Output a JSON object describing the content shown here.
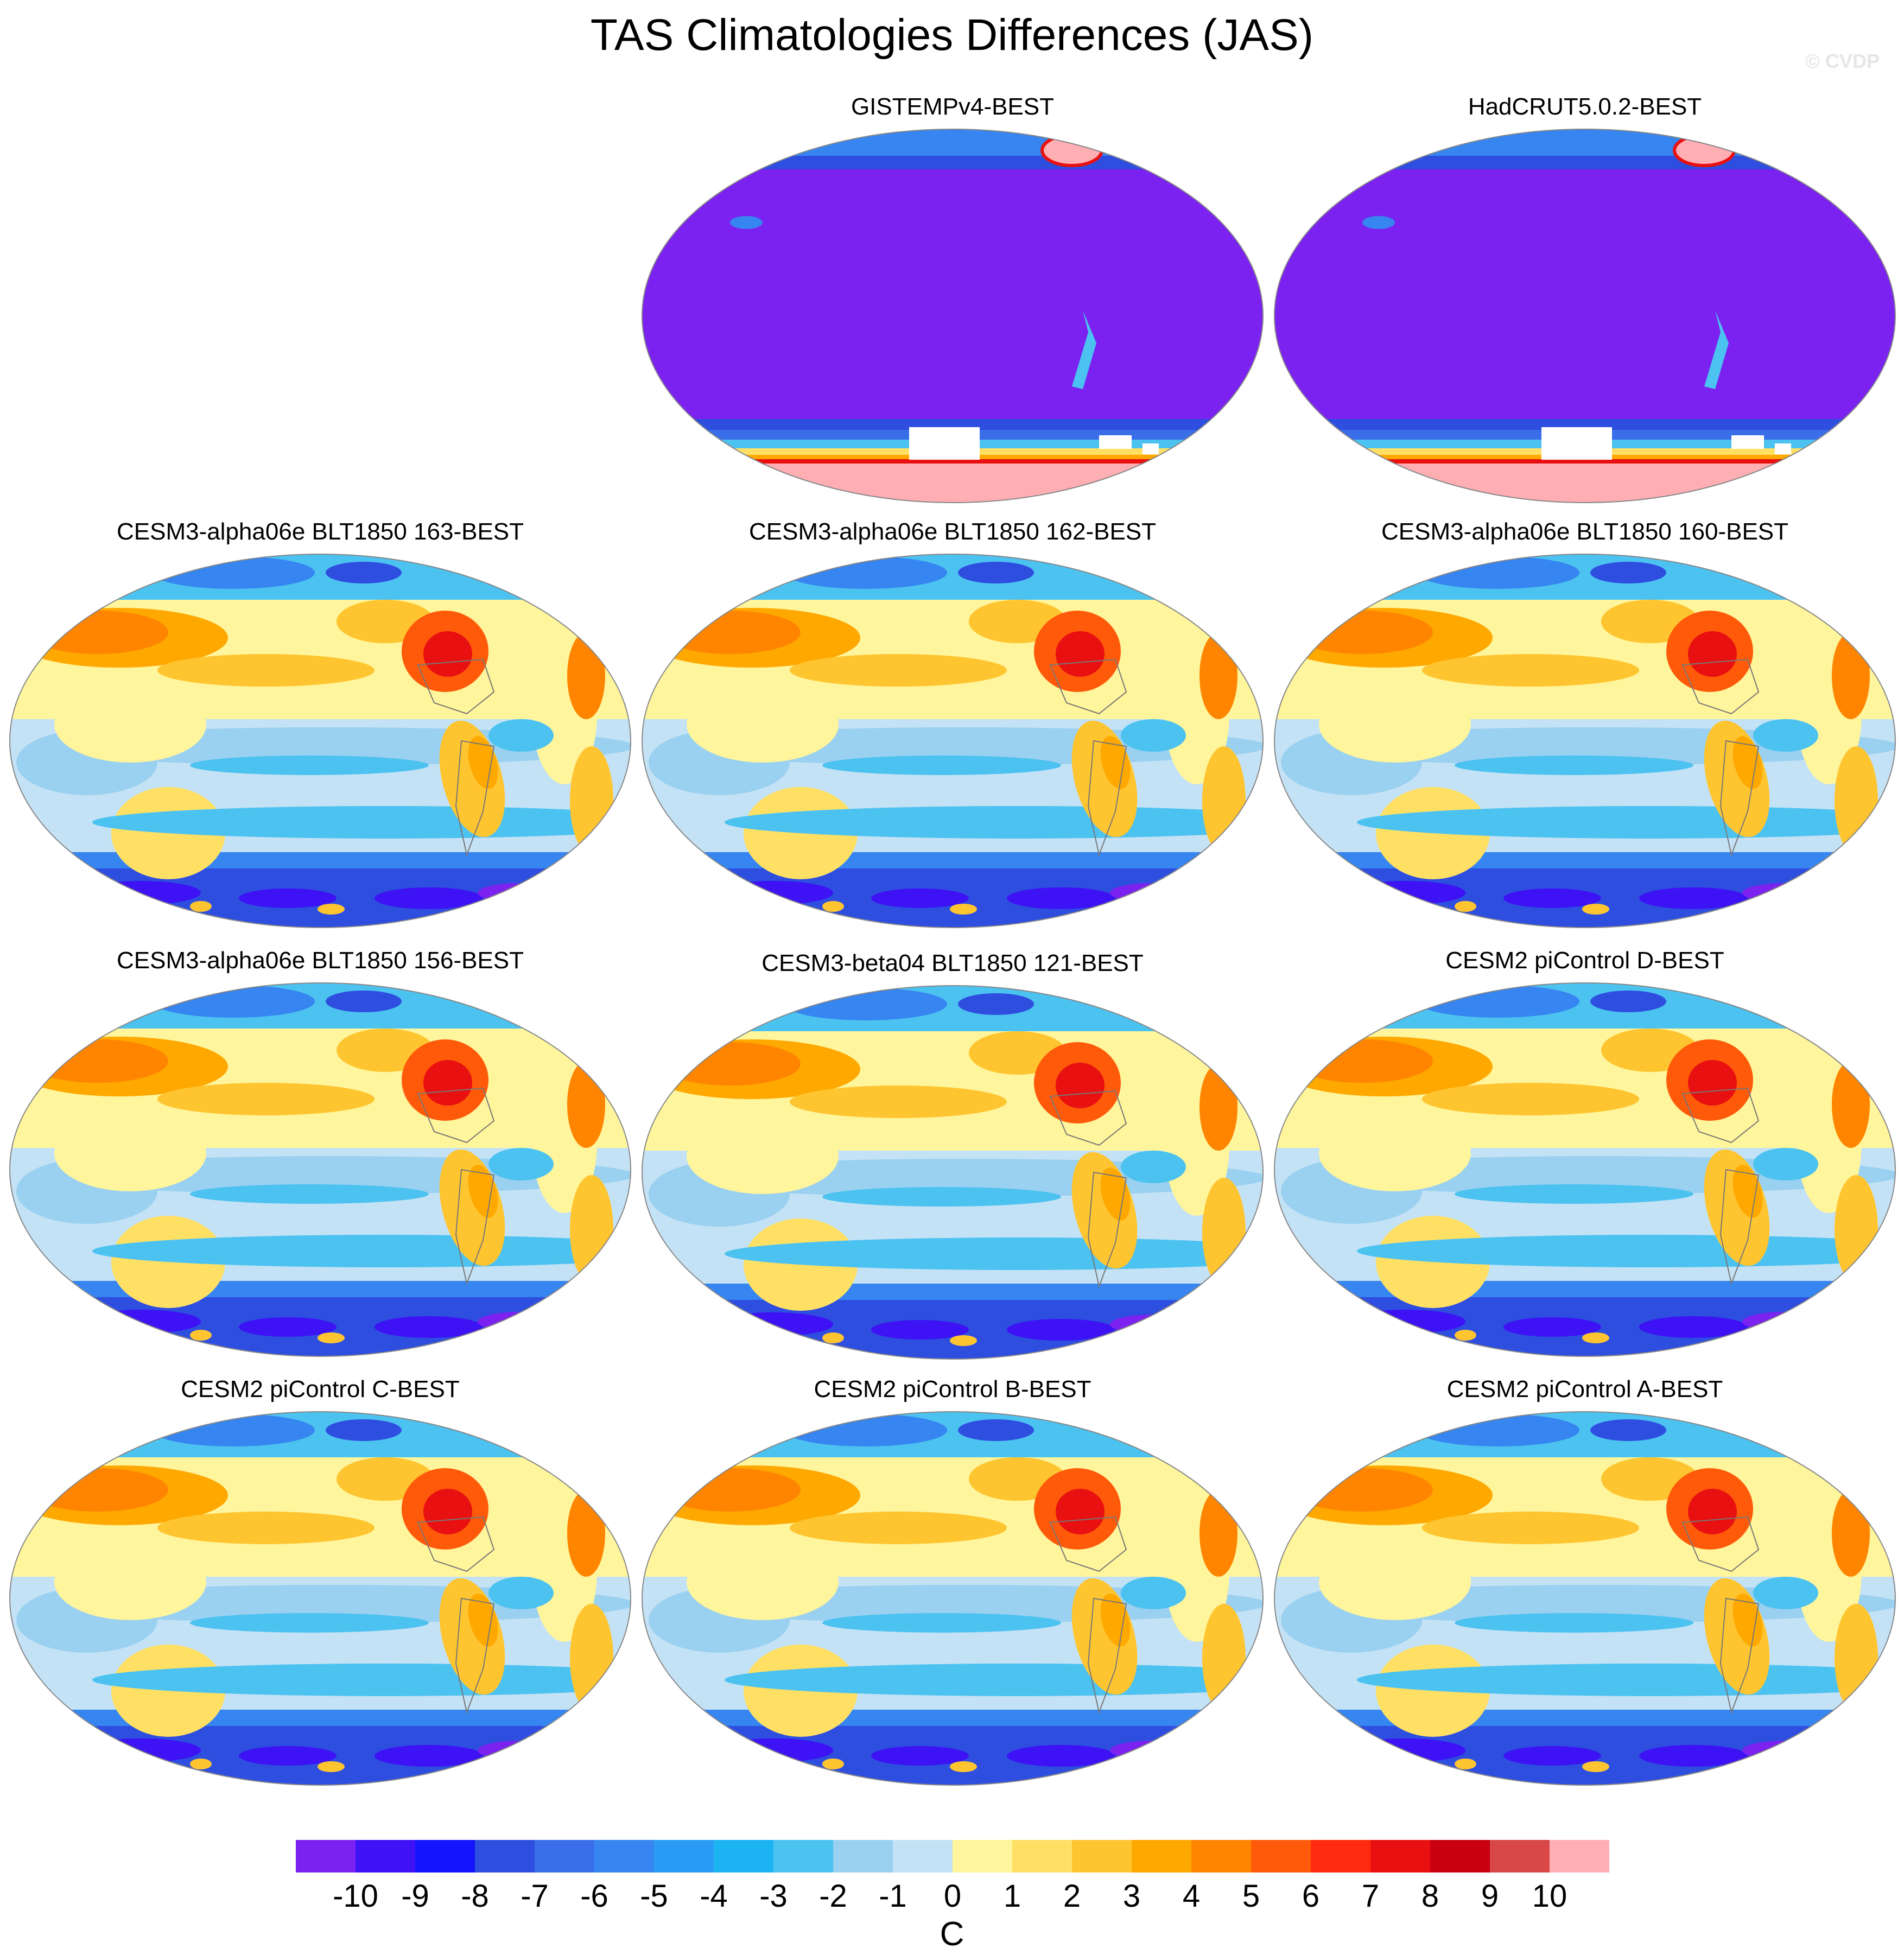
{
  "title": "TAS Climatologies Differences (JAS)",
  "watermark": "© CVDP",
  "panels": [
    {
      "title": "GISTEMPv4-BEST",
      "variant": "obs"
    },
    {
      "title": "HadCRUT5.0.2-BEST",
      "variant": "obs"
    },
    {
      "title": "CESM3-alpha06e BLT1850 163-BEST",
      "variant": "model"
    },
    {
      "title": "CESM3-alpha06e BLT1850 162-BEST",
      "variant": "model"
    },
    {
      "title": "CESM3-alpha06e BLT1850 160-BEST",
      "variant": "model"
    },
    {
      "title": "CESM3-alpha06e BLT1850 156-BEST",
      "variant": "model"
    },
    {
      "title": "CESM3-beta04 BLT1850 121-BEST",
      "variant": "model"
    },
    {
      "title": "CESM2 piControl D-BEST",
      "variant": "model"
    },
    {
      "title": "CESM2 piControl C-BEST",
      "variant": "model"
    },
    {
      "title": "CESM2 piControl B-BEST",
      "variant": "model"
    },
    {
      "title": "CESM2 piControl A-BEST",
      "variant": "model"
    }
  ],
  "colorbar": {
    "colors": [
      "#7b22f0",
      "#3d12f5",
      "#1414ff",
      "#2e4ee0",
      "#3a6de8",
      "#3685f0",
      "#2a9cf5",
      "#1bb3f2",
      "#4cc2f0",
      "#9ad0f0",
      "#c4e2f5",
      "#fff59c",
      "#ffe065",
      "#ffc530",
      "#ffa800",
      "#ff8500",
      "#ff5a0a",
      "#ff2a10",
      "#e81010",
      "#c80010",
      "#d94848",
      "#ffaeb3"
    ],
    "ticks": [
      "-10",
      "-9",
      "-8",
      "-7",
      "-6",
      "-5",
      "-4",
      "-3",
      "-2",
      "-1",
      "0",
      "1",
      "2",
      "3",
      "4",
      "5",
      "6",
      "7",
      "8",
      "9",
      "10"
    ],
    "units": "C"
  }
}
